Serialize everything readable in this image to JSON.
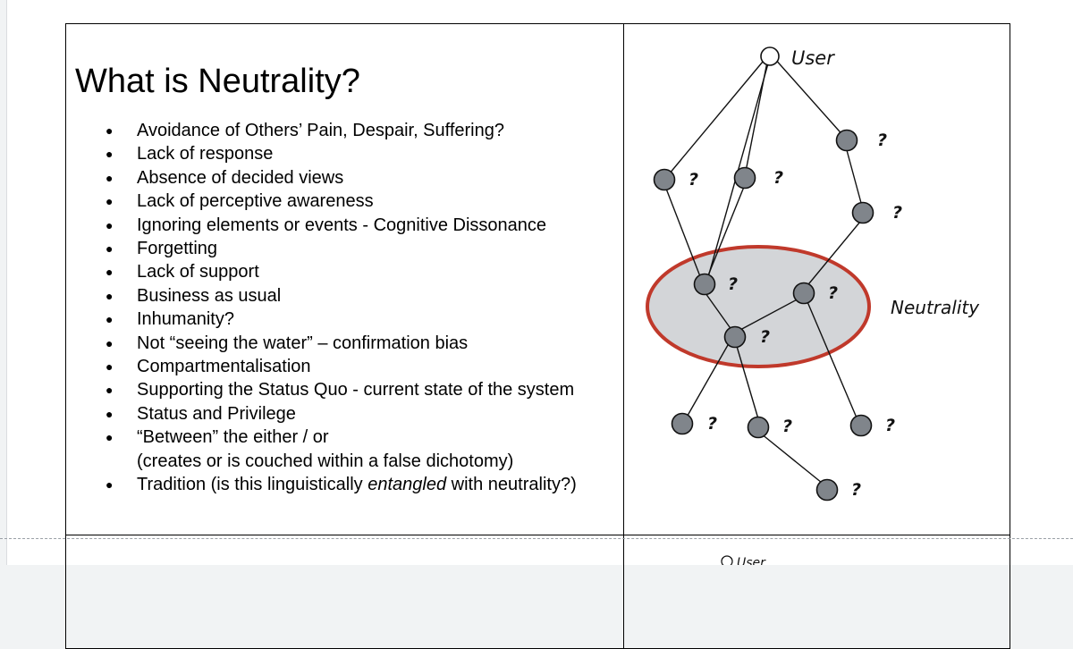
{
  "heading": "What is Neutrality?",
  "bullets": [
    {
      "text": "Avoidance of Others’ Pain, Despair, Suffering?"
    },
    {
      "text": "Lack of response"
    },
    {
      "text": "Absence of decided views"
    },
    {
      "text": "Lack of perceptive awareness"
    },
    {
      "text": "Ignoring elements or events - Cognitive Dissonance"
    },
    {
      "text": "Forgetting"
    },
    {
      "text": "Lack of support"
    },
    {
      "text": "Business as usual"
    },
    {
      "text": "Inhumanity?"
    },
    {
      "text": "Not “seeing the water” – confirmation bias"
    },
    {
      "text": "Compartmentalisation"
    },
    {
      "text": "Supporting the Status Quo - current state of the system"
    },
    {
      "text": "Status and Privilege"
    },
    {
      "text": "“Between” the either / or",
      "continuation": "(creates or is couched within a false dichotomy)"
    },
    {
      "text_before": "Tradition (is this linguistically ",
      "emphasis": "entangled",
      "text_after": " with neutrality?)"
    }
  ],
  "diagram": {
    "user_label": "User",
    "neutrality_label": "Neutrality",
    "node_mark": "?",
    "colors": {
      "node_fill": "#80858b",
      "ellipse_fill": "#d3d5d8",
      "ellipse_stroke": "#c0392b"
    }
  },
  "next_row": {
    "user_label": "User"
  }
}
